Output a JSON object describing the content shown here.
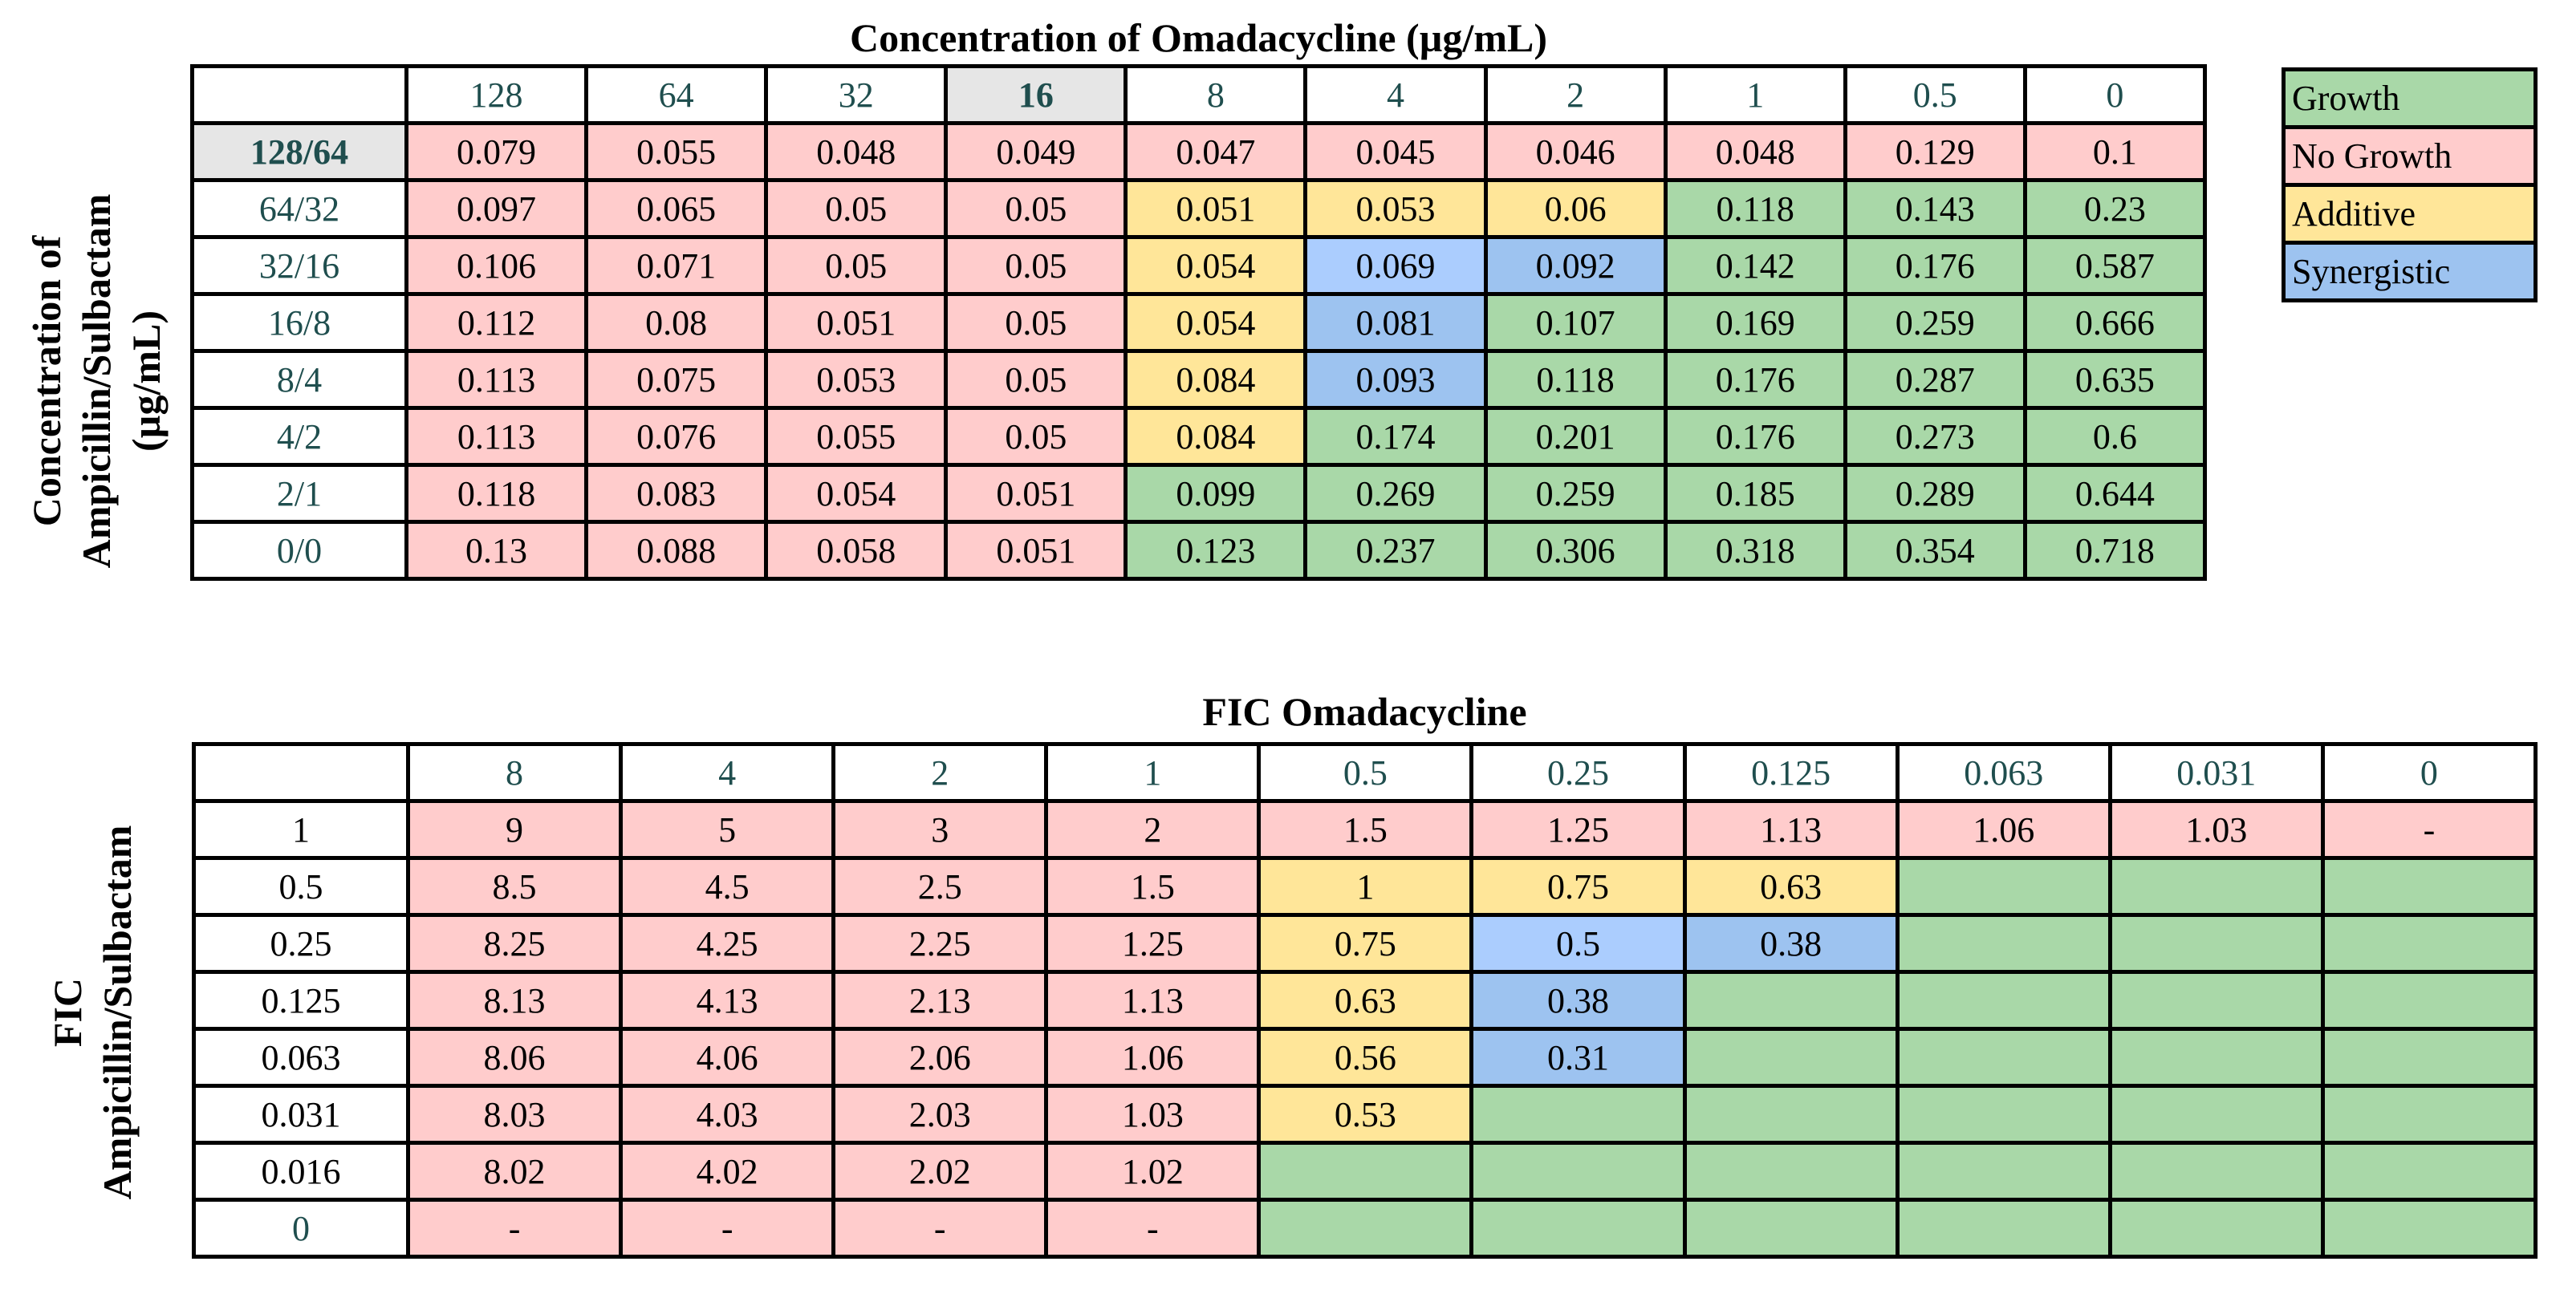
{
  "colors": {
    "N": "#ffcccc",
    "G": "#a9d8a8",
    "A": "#ffe699",
    "S": "#9dc3f0",
    "L": "#abcdfe"
  },
  "top": {
    "title": "Concentration of Omadacycline (µg/mL)",
    "row_axis_label_line1": "Concentration of",
    "row_axis_label_line2": "Ampicillin/Sulbactam",
    "row_axis_label_line3": "(µg/mL)",
    "highlight_column": "16",
    "highlight_row": "128/64",
    "columns": [
      "128",
      "64",
      "32",
      "16",
      "8",
      "4",
      "2",
      "1",
      "0.5",
      "0"
    ],
    "rows": [
      {
        "label": "128/64",
        "values": [
          "0.079",
          "0.055",
          "0.048",
          "0.049",
          "0.047",
          "0.045",
          "0.046",
          "0.048",
          "0.129",
          "0.1"
        ],
        "status": "NNNNNNNNNN"
      },
      {
        "label": "64/32",
        "values": [
          "0.097",
          "0.065",
          "0.05",
          "0.05",
          "0.051",
          "0.053",
          "0.06",
          "0.118",
          "0.143",
          "0.23"
        ],
        "status": "NNNNAAAGGG"
      },
      {
        "label": "32/16",
        "values": [
          "0.106",
          "0.071",
          "0.05",
          "0.05",
          "0.054",
          "0.069",
          "0.092",
          "0.142",
          "0.176",
          "0.587"
        ],
        "status": "NNNNALSGGG"
      },
      {
        "label": "16/8",
        "values": [
          "0.112",
          "0.08",
          "0.051",
          "0.05",
          "0.054",
          "0.081",
          "0.107",
          "0.169",
          "0.259",
          "0.666"
        ],
        "status": "NNNNASGGGG"
      },
      {
        "label": "8/4",
        "values": [
          "0.113",
          "0.075",
          "0.053",
          "0.05",
          "0.084",
          "0.093",
          "0.118",
          "0.176",
          "0.287",
          "0.635"
        ],
        "status": "NNNNASGGGG"
      },
      {
        "label": "4/2",
        "values": [
          "0.113",
          "0.076",
          "0.055",
          "0.05",
          "0.084",
          "0.174",
          "0.201",
          "0.176",
          "0.273",
          "0.6"
        ],
        "status": "NNNNAGGGGG"
      },
      {
        "label": "2/1",
        "values": [
          "0.118",
          "0.083",
          "0.054",
          "0.051",
          "0.099",
          "0.269",
          "0.259",
          "0.185",
          "0.289",
          "0.644"
        ],
        "status": "NNNNGGGGGG"
      },
      {
        "label": "0/0",
        "values": [
          "0.13",
          "0.088",
          "0.058",
          "0.051",
          "0.123",
          "0.237",
          "0.306",
          "0.318",
          "0.354",
          "0.718"
        ],
        "status": "NNNNGGGGGG"
      }
    ]
  },
  "legend": [
    {
      "label": "Growth",
      "status": "G"
    },
    {
      "label": "No Growth",
      "status": "N"
    },
    {
      "label": "Additive",
      "status": "A"
    },
    {
      "label": "Synergistic",
      "status": "S"
    }
  ],
  "bottom": {
    "title": "FIC Omadacycline",
    "row_axis_label_line1": "FIC",
    "row_axis_label_line2": "Ampicillin/Sulbactam",
    "columns": [
      "8",
      "4",
      "2",
      "1",
      "0.5",
      "0.25",
      "0.125",
      "0.063",
      "0.031",
      "0"
    ],
    "rows": [
      {
        "label": "1",
        "values": [
          "9",
          "5",
          "3",
          "2",
          "1.5",
          "1.25",
          "1.13",
          "1.06",
          "1.03",
          "-"
        ],
        "status": "NNNNNNNNNN"
      },
      {
        "label": "0.5",
        "values": [
          "8.5",
          "4.5",
          "2.5",
          "1.5",
          "1",
          "0.75",
          "0.63",
          "",
          "",
          ""
        ],
        "status": "NNNNAAAGGG"
      },
      {
        "label": "0.25",
        "values": [
          "8.25",
          "4.25",
          "2.25",
          "1.25",
          "0.75",
          "0.5",
          "0.38",
          "",
          "",
          ""
        ],
        "status": "NNNNALSGGG"
      },
      {
        "label": "0.125",
        "values": [
          "8.13",
          "4.13",
          "2.13",
          "1.13",
          "0.63",
          "0.38",
          "",
          "",
          "",
          ""
        ],
        "status": "NNNNASGGGG"
      },
      {
        "label": "0.063",
        "values": [
          "8.06",
          "4.06",
          "2.06",
          "1.06",
          "0.56",
          "0.31",
          "",
          "",
          "",
          ""
        ],
        "status": "NNNNASGGGG"
      },
      {
        "label": "0.031",
        "values": [
          "8.03",
          "4.03",
          "2.03",
          "1.03",
          "0.53",
          "",
          "",
          "",
          "",
          ""
        ],
        "status": "NNNNAGGGGG"
      },
      {
        "label": "0.016",
        "values": [
          "8.02",
          "4.02",
          "2.02",
          "1.02",
          "",
          "",
          "",
          "",
          "",
          ""
        ],
        "status": "NNNNGGGGGG"
      },
      {
        "label": "0",
        "values": [
          "-",
          "-",
          "-",
          "-",
          "",
          "",
          "",
          "",
          "",
          ""
        ],
        "status": "NNNNGGGGGG"
      }
    ]
  }
}
